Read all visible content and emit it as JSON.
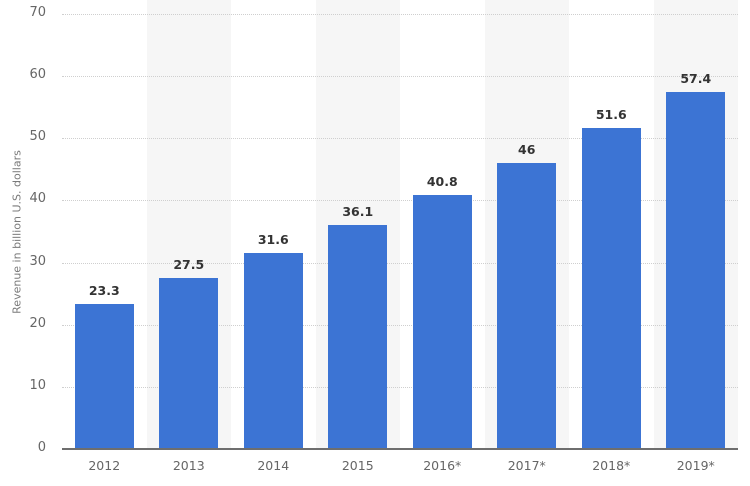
{
  "chart_data": {
    "type": "bar",
    "title": "",
    "xlabel": "",
    "ylabel": "Revenue in billion U.S. dollars",
    "categories": [
      "2012",
      "2013",
      "2014",
      "2015",
      "2016*",
      "2017*",
      "2018*",
      "2019*"
    ],
    "values": [
      23.3,
      27.5,
      31.6,
      36.1,
      40.8,
      46,
      51.6,
      57.4
    ],
    "value_labels": [
      "23.3",
      "27.5",
      "31.6",
      "36.1",
      "40.8",
      "46",
      "51.6",
      "57.4"
    ],
    "ylim": [
      0,
      70
    ],
    "yticks": [
      0,
      10,
      20,
      30,
      40,
      50,
      60,
      70
    ],
    "grid": true,
    "legend": null,
    "colors": {
      "bar": "#3c74d4",
      "band": "#f6f6f6",
      "grid": "#cfcfcf",
      "axis": "#6e6e6e"
    }
  }
}
